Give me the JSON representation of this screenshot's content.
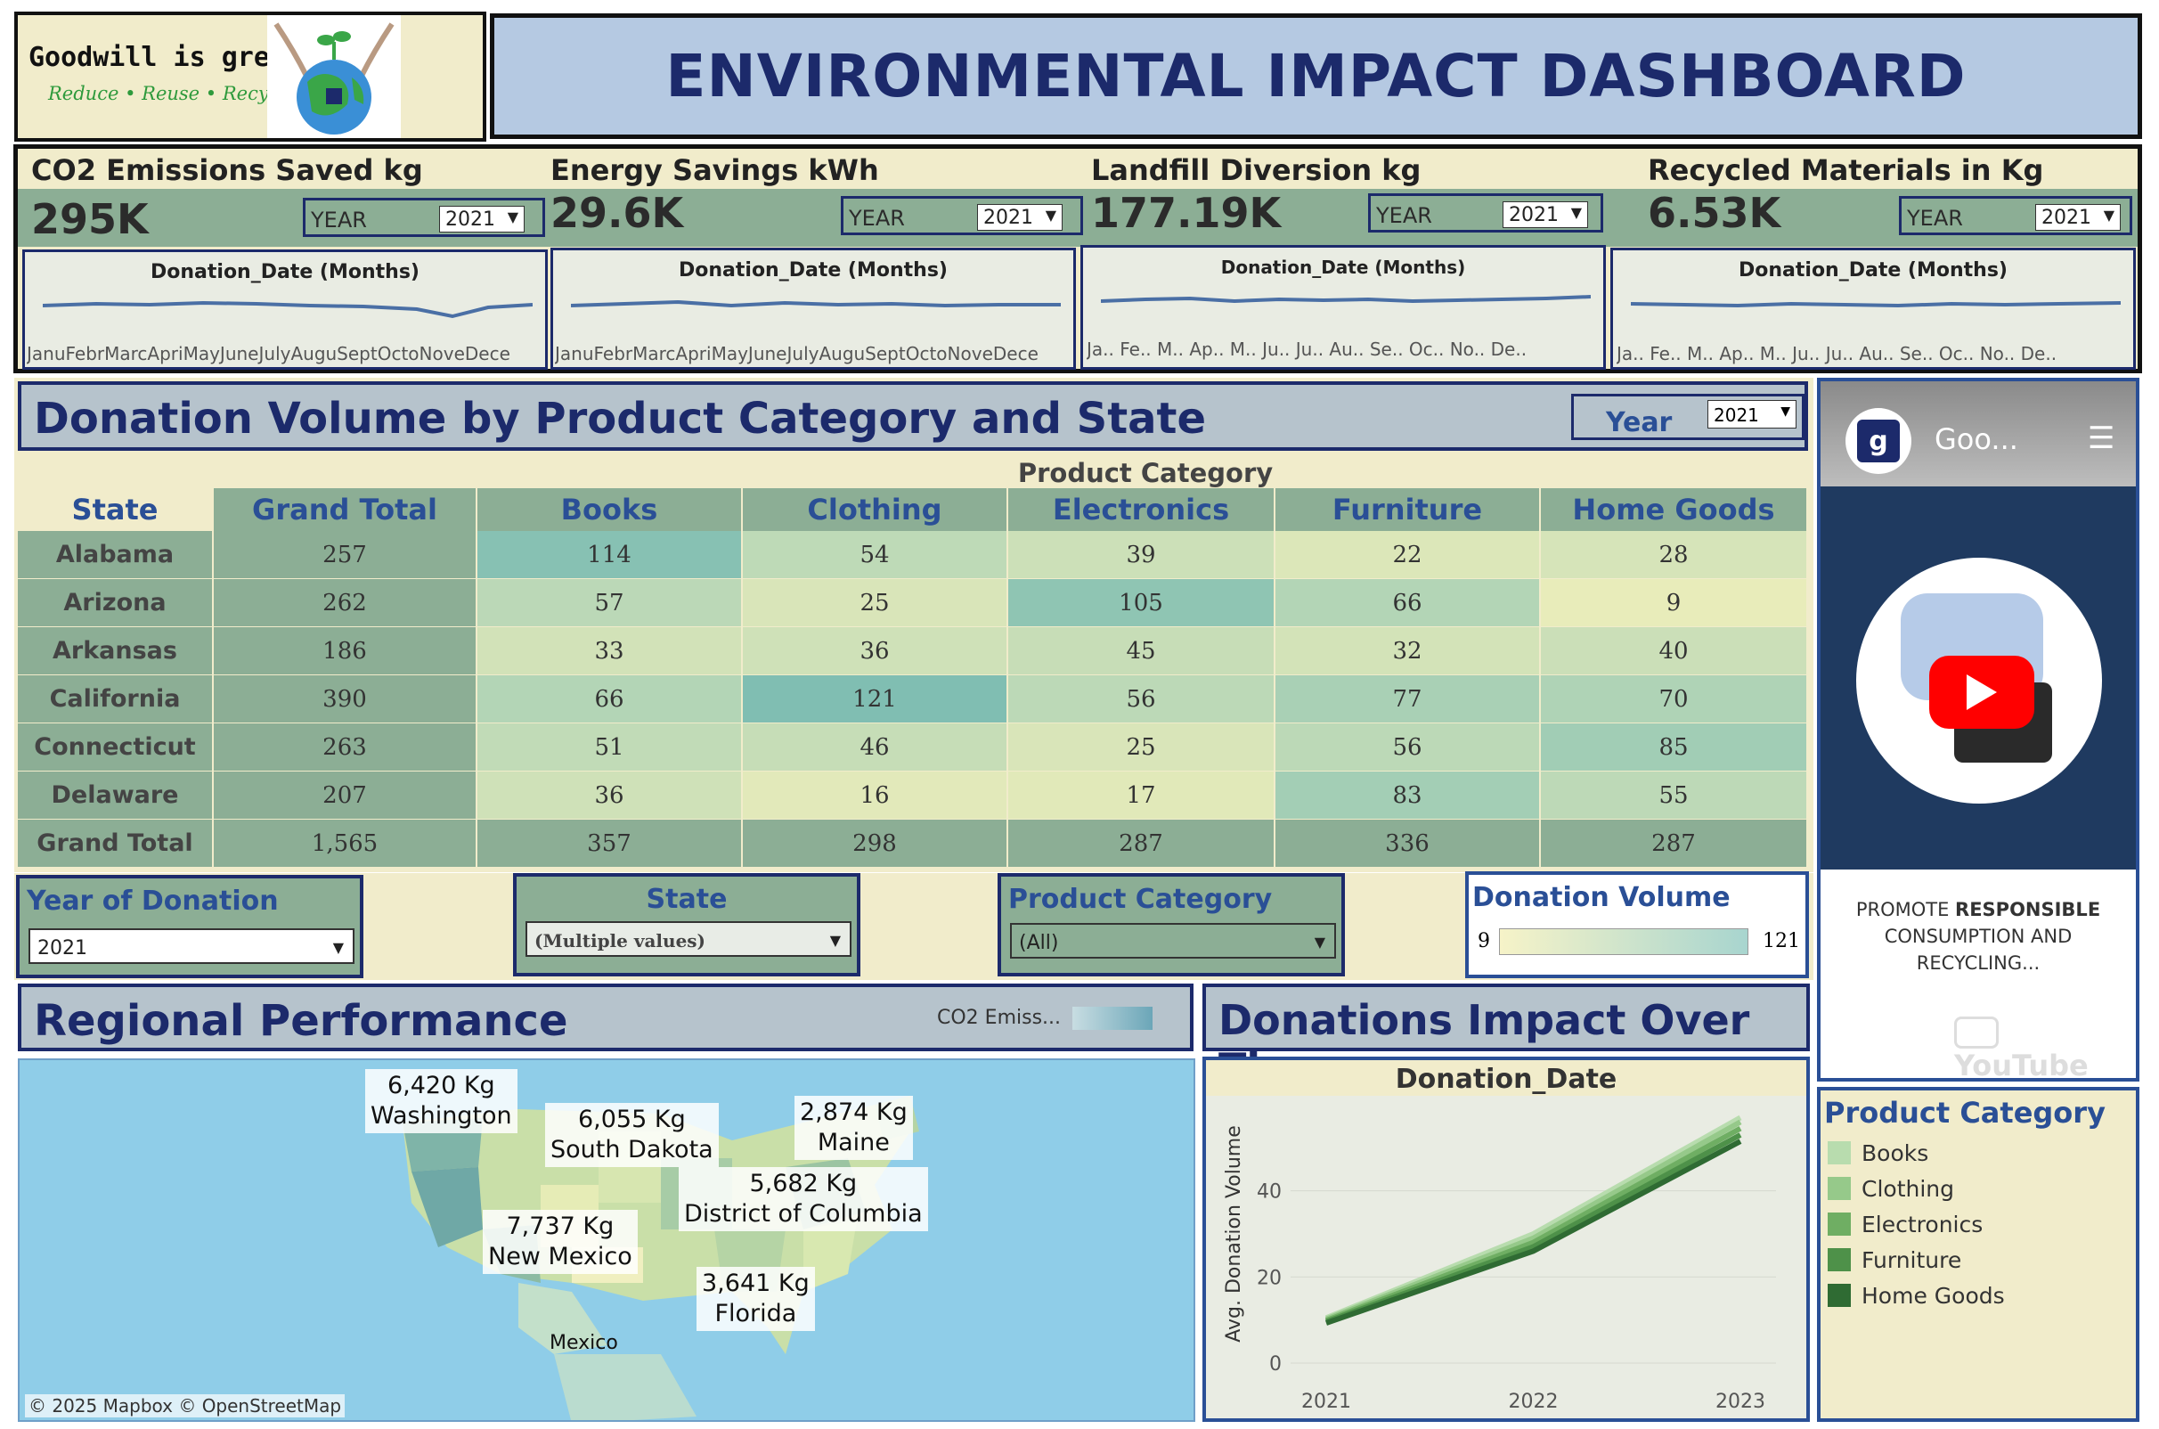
{
  "logo": {
    "name": "Goodwill is green",
    "tagline": "Reduce • Reuse • Recycle"
  },
  "title": "ENVIRONMENTAL IMPACT DASHBOARD",
  "kpis": [
    {
      "title": "CO2 Emissions Saved kg",
      "value": "295K",
      "year_label": "YEAR",
      "year": "2021",
      "chart_title": "Donation_Date (Months)",
      "months": "JanuFebrMarcApriMayJuneJulyAuguSeptOctoNoveDece"
    },
    {
      "title": "Energy Savings kWh",
      "value": "29.6K",
      "year_label": "YEAR",
      "year": "2021",
      "chart_title": "Donation_Date (Months)",
      "months": "JanuFebrMarcApriMayJuneJulyAuguSeptOctoNoveDece"
    },
    {
      "title": "Landfill Diversion kg",
      "value": "177.19K",
      "year_label": "YEAR",
      "year": "2021",
      "chart_title": "Donation_Date (Months)",
      "months": "Ja.. Fe.. M.. Ap.. M.. Ju.. Ju.. Au.. Se.. Oc.. No.. De.."
    },
    {
      "title": "Recycled Materials in Kg",
      "value": "6.53K",
      "year_label": "YEAR",
      "year": "2021",
      "chart_title": "Donation_Date (Months)",
      "months": "Ja.. Fe.. M.. Ap.. M.. Ju.. Ju.. Au.. Se.. Oc.. No.. De.."
    }
  ],
  "donation_table": {
    "title": "Donation Volume by Product Category and State",
    "year_label": "Year",
    "year": "2021",
    "category_header": "Product Category",
    "state_header": "State",
    "columns": [
      "Grand Total",
      "Books",
      "Clothing",
      "Electronics",
      "Furniture",
      "Home Goods"
    ],
    "rows": [
      {
        "state": "Alabama",
        "values": [
          "257",
          "114",
          "54",
          "39",
          "22",
          "28"
        ]
      },
      {
        "state": "Arizona",
        "values": [
          "262",
          "57",
          "25",
          "105",
          "66",
          "9"
        ]
      },
      {
        "state": "Arkansas",
        "values": [
          "186",
          "33",
          "36",
          "45",
          "32",
          "40"
        ]
      },
      {
        "state": "California",
        "values": [
          "390",
          "66",
          "121",
          "56",
          "77",
          "70"
        ]
      },
      {
        "state": "Connecticut",
        "values": [
          "263",
          "51",
          "46",
          "25",
          "56",
          "85"
        ]
      },
      {
        "state": "Delaware",
        "values": [
          "207",
          "36",
          "16",
          "17",
          "83",
          "55"
        ]
      }
    ],
    "total_row": {
      "state": "Grand Total",
      "values": [
        "1,565",
        "357",
        "298",
        "287",
        "336",
        "287"
      ]
    }
  },
  "filters": {
    "year": {
      "title": "Year of Donation",
      "value": "2021"
    },
    "state": {
      "title": "State",
      "value": "(Multiple values)"
    },
    "category": {
      "title": "Product Category",
      "value": "(All)"
    },
    "volume": {
      "title": "Donation Volume",
      "min": "9",
      "max": "121"
    }
  },
  "regional": {
    "title": "Regional Performance",
    "legend_label": "CO2 Emiss...",
    "labels": [
      {
        "kg": "6,420 Kg",
        "state": "Washington"
      },
      {
        "kg": "6,055 Kg",
        "state": "South Dakota"
      },
      {
        "kg": "2,874 Kg",
        "state": "Maine"
      },
      {
        "kg": "5,682 Kg",
        "state": "District of Columbia"
      },
      {
        "kg": "7,737 Kg",
        "state": "New Mexico"
      },
      {
        "kg": "3,641 Kg",
        "state": "Florida"
      }
    ],
    "mexico": "Mexico",
    "attribution": "© 2025 Mapbox  © OpenStreetMap"
  },
  "video": {
    "channel": "Goo...",
    "caption_line1_a": "PROMOTE ",
    "caption_line1_b": "RESPONSIBLE",
    "caption_line2": "CONSUMPTION AND",
    "caption_line3": "RECYCLING...",
    "youtube": "YouTube"
  },
  "impact": {
    "title": "Donations Impact Over Time",
    "chart_title": "Donation_Date"
  },
  "chart_data": {
    "type": "line",
    "title": "Donation_Date",
    "xlabel": "",
    "ylabel": "Avg. Donation Volume",
    "x": [
      "2021",
      "2022",
      "2023"
    ],
    "ylim": [
      0,
      60
    ],
    "yticks": [
      0,
      20,
      40
    ],
    "series": [
      {
        "name": "Books",
        "values": [
          10.5,
          30,
          57
        ]
      },
      {
        "name": "Clothing",
        "values": [
          10.2,
          29,
          56
        ]
      },
      {
        "name": "Electronics",
        "values": [
          9.9,
          28,
          54.5
        ]
      },
      {
        "name": "Furniture",
        "values": [
          9.6,
          27,
          53
        ]
      },
      {
        "name": "Home Goods",
        "values": [
          9.3,
          26,
          51.5
        ]
      }
    ]
  },
  "category_legend": {
    "title": "Product Category",
    "items": [
      {
        "label": "Books",
        "color": "#b8dcae"
      },
      {
        "label": "Clothing",
        "color": "#96c98a"
      },
      {
        "label": "Electronics",
        "color": "#6fae63"
      },
      {
        "label": "Furniture",
        "color": "#4e9149"
      },
      {
        "label": "Home Goods",
        "color": "#2f6b33"
      }
    ]
  }
}
